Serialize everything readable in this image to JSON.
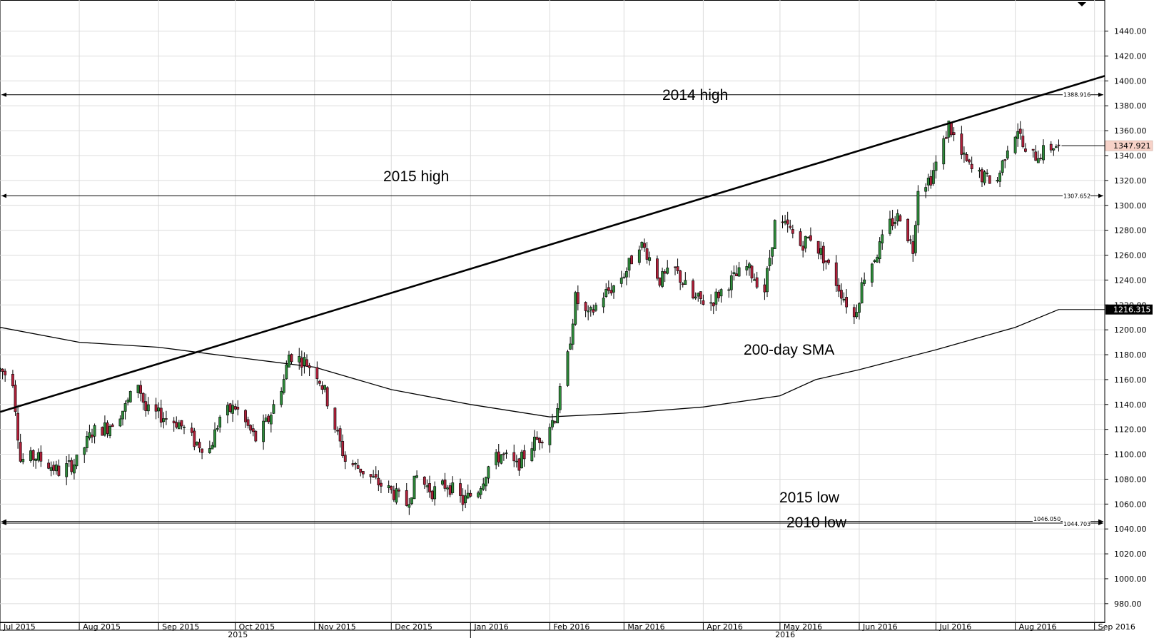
{
  "chart_data": {
    "type": "candlestick",
    "y_axis": {
      "ylim": [
        965,
        1465
      ],
      "ticks": [
        "980.00",
        "1000.00",
        "1020.00",
        "1040.00",
        "1060.00",
        "1080.00",
        "1100.00",
        "1120.00",
        "1140.00",
        "1160.00",
        "1180.00",
        "1200.00",
        "1220.00",
        "1240.00",
        "1260.00",
        "1280.00",
        "1300.00",
        "1320.00",
        "1340.00",
        "1360.00",
        "1380.00",
        "1400.00",
        "1420.00",
        "1440.00"
      ],
      "tick_values": [
        980,
        1000,
        1020,
        1040,
        1060,
        1080,
        1100,
        1120,
        1140,
        1160,
        1180,
        1200,
        1220,
        1240,
        1260,
        1280,
        1300,
        1320,
        1340,
        1360,
        1380,
        1400,
        1420,
        1440
      ]
    },
    "x_axis": {
      "start": "2015-07-01",
      "end": "2016-09-05",
      "months": [
        {
          "label": "Jul 2015",
          "date": "2015-07-01"
        },
        {
          "label": "Aug 2015",
          "date": "2015-08-01"
        },
        {
          "label": "Sep 2015",
          "date": "2015-09-01"
        },
        {
          "label": "Oct 2015",
          "date": "2015-10-01"
        },
        {
          "label": "Nov 2015",
          "date": "2015-11-01"
        },
        {
          "label": "Dec 2015",
          "date": "2015-12-01"
        },
        {
          "label": "Jan 2016",
          "date": "2016-01-01"
        },
        {
          "label": "Feb 2016",
          "date": "2016-02-01"
        },
        {
          "label": "Mar 2016",
          "date": "2016-03-01"
        },
        {
          "label": "Apr 2016",
          "date": "2016-04-01"
        },
        {
          "label": "May 2016",
          "date": "2016-05-01"
        },
        {
          "label": "Jun 2016",
          "date": "2016-06-01"
        },
        {
          "label": "Jul 2016",
          "date": "2016-07-01"
        },
        {
          "label": "Aug 2016",
          "date": "2016-08-01"
        },
        {
          "label": "Sep 2016",
          "date": "2016-09-01"
        }
      ],
      "years": [
        {
          "label": "2015",
          "date": "2015-10-02"
        },
        {
          "label": "2016",
          "date": "2016-05-03"
        }
      ],
      "year_divider": "2016-01-01"
    },
    "price_path": [
      [
        "2015-07-01",
        1168
      ],
      [
        "2015-07-06",
        1160
      ],
      [
        "2015-07-09",
        1095
      ],
      [
        "2015-07-15",
        1098
      ],
      [
        "2015-07-20",
        1092
      ],
      [
        "2015-07-24",
        1086
      ],
      [
        "2015-07-31",
        1094
      ],
      [
        "2015-08-06",
        1118
      ],
      [
        "2015-08-12",
        1122
      ],
      [
        "2015-08-19",
        1138
      ],
      [
        "2015-08-24",
        1158
      ],
      [
        "2015-08-27",
        1135
      ],
      [
        "2015-09-03",
        1130
      ],
      [
        "2015-09-09",
        1125
      ],
      [
        "2015-09-15",
        1110
      ],
      [
        "2015-09-21",
        1104
      ],
      [
        "2015-09-25",
        1130
      ],
      [
        "2015-10-01",
        1138
      ],
      [
        "2015-10-05",
        1125
      ],
      [
        "2015-10-09",
        1112
      ],
      [
        "2015-10-14",
        1128
      ],
      [
        "2015-10-20",
        1160
      ],
      [
        "2015-10-22",
        1180
      ],
      [
        "2015-10-28",
        1175
      ],
      [
        "2015-11-02",
        1165
      ],
      [
        "2015-11-05",
        1150
      ],
      [
        "2015-11-09",
        1122
      ],
      [
        "2015-11-13",
        1095
      ],
      [
        "2015-11-19",
        1088
      ],
      [
        "2015-11-25",
        1078
      ],
      [
        "2015-12-01",
        1070
      ],
      [
        "2015-12-07",
        1060
      ],
      [
        "2015-12-11",
        1082
      ],
      [
        "2015-12-17",
        1070
      ],
      [
        "2015-12-23",
        1076
      ],
      [
        "2015-12-29",
        1062
      ],
      [
        "2016-01-04",
        1072
      ],
      [
        "2016-01-08",
        1090
      ],
      [
        "2016-01-13",
        1100
      ],
      [
        "2016-01-19",
        1090
      ],
      [
        "2016-01-25",
        1108
      ],
      [
        "2016-01-29",
        1115
      ],
      [
        "2016-02-03",
        1130
      ],
      [
        "2016-02-08",
        1178
      ],
      [
        "2016-02-11",
        1225
      ],
      [
        "2016-02-16",
        1210
      ],
      [
        "2016-02-22",
        1228
      ],
      [
        "2016-02-26",
        1235
      ],
      [
        "2016-03-02",
        1248
      ],
      [
        "2016-03-07",
        1270
      ],
      [
        "2016-03-10",
        1262
      ],
      [
        "2016-03-15",
        1240
      ],
      [
        "2016-03-21",
        1248
      ],
      [
        "2016-03-28",
        1225
      ],
      [
        "2016-04-04",
        1222
      ],
      [
        "2016-04-11",
        1238
      ],
      [
        "2016-04-18",
        1250
      ],
      [
        "2016-04-25",
        1232
      ],
      [
        "2016-04-29",
        1285
      ],
      [
        "2016-05-04",
        1282
      ],
      [
        "2016-05-09",
        1268
      ],
      [
        "2016-05-13",
        1275
      ],
      [
        "2016-05-19",
        1255
      ],
      [
        "2016-05-25",
        1230
      ],
      [
        "2016-05-30",
        1210
      ],
      [
        "2016-06-03",
        1244
      ],
      [
        "2016-06-08",
        1262
      ],
      [
        "2016-06-13",
        1285
      ],
      [
        "2016-06-17",
        1292
      ],
      [
        "2016-06-22",
        1265
      ],
      [
        "2016-06-24",
        1315
      ],
      [
        "2016-06-29",
        1322
      ],
      [
        "2016-07-04",
        1350
      ],
      [
        "2016-07-06",
        1365
      ],
      [
        "2016-07-11",
        1340
      ],
      [
        "2016-07-15",
        1328
      ],
      [
        "2016-07-20",
        1322
      ],
      [
        "2016-07-25",
        1320
      ],
      [
        "2016-07-29",
        1348
      ],
      [
        "2016-08-02",
        1362
      ],
      [
        "2016-08-05",
        1340
      ],
      [
        "2016-08-09",
        1340
      ],
      [
        "2016-08-12",
        1343
      ],
      [
        "2016-08-16",
        1348
      ],
      [
        "2016-08-18",
        1347.921
      ]
    ],
    "price_range": [
      1045,
      1375
    ],
    "sma": {
      "name": "200-day SMA",
      "points": [
        [
          "2015-07-01",
          1202
        ],
        [
          "2015-08-01",
          1190
        ],
        [
          "2015-09-01",
          1186
        ],
        [
          "2015-10-01",
          1178
        ],
        [
          "2015-11-01",
          1170
        ],
        [
          "2015-12-01",
          1152
        ],
        [
          "2016-01-01",
          1140
        ],
        [
          "2016-02-01",
          1130
        ],
        [
          "2016-03-01",
          1133
        ],
        [
          "2016-04-01",
          1138
        ],
        [
          "2016-05-01",
          1147
        ],
        [
          "2016-05-15",
          1160
        ],
        [
          "2016-06-01",
          1168
        ],
        [
          "2016-07-01",
          1184
        ],
        [
          "2016-08-01",
          1202
        ],
        [
          "2016-08-18",
          1216.315
        ]
      ],
      "last_value": "1216.315"
    },
    "trendline": {
      "points": [
        [
          "2015-07-01",
          1134
        ],
        [
          "2016-09-05",
          1404
        ]
      ]
    },
    "horizontal_lines": [
      {
        "value": 1388.916,
        "label": "1388.916",
        "annotation": "2014 high"
      },
      {
        "value": 1307.652,
        "label": "1307.652",
        "annotation": "2015 high"
      },
      {
        "value": 1046.05,
        "label": "1046.050",
        "annotation": "2015 low"
      },
      {
        "value": 1044.703,
        "label": "1044.703",
        "annotation": "2010 low"
      }
    ],
    "last_price": {
      "value": 1347.921,
      "label": "1347.921",
      "color": "#f7d2c8"
    },
    "colors": {
      "up": "#2e8b3a",
      "down": "#b0203a",
      "grid": "#dcdcdc",
      "line": "#000000"
    }
  }
}
